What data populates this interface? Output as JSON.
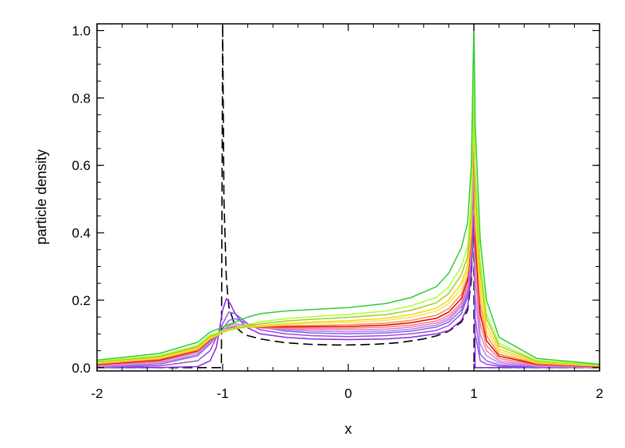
{
  "chart_data": {
    "type": "line",
    "title": "",
    "xlabel": "x",
    "ylabel": "particle density",
    "xlim": [
      -2,
      2
    ],
    "ylim": [
      -0.01,
      1.02
    ],
    "x_ticks": [
      -2,
      -1,
      0,
      1,
      2
    ],
    "x_tick_labels": [
      "-2",
      "-1",
      "0",
      "1",
      "2"
    ],
    "y_ticks": [
      0.0,
      0.2,
      0.4,
      0.6,
      0.8,
      1.0
    ],
    "y_tick_labels": [
      "0.0",
      "0.2",
      "0.4",
      "0.6",
      "0.8",
      "1.0"
    ],
    "grid": false,
    "legend": "none",
    "series": [
      {
        "style": "dashed",
        "color": "#000000",
        "x": [
          -2,
          -1.05,
          -1.01,
          -1.0,
          -0.99,
          -0.97,
          -0.95,
          -0.9,
          -0.85,
          -0.8,
          -0.7,
          -0.6,
          -0.5,
          -0.4,
          -0.3,
          -0.2,
          -0.1,
          0,
          0.1,
          0.2,
          0.3,
          0.4,
          0.5,
          0.6,
          0.7,
          0.8,
          0.9,
          0.95,
          0.98,
          0.995,
          1.0,
          1.001,
          2
        ],
        "y": [
          0,
          0,
          0,
          1.02,
          0.5,
          0.26,
          0.18,
          0.122,
          0.105,
          0.095,
          0.085,
          0.079,
          0.074,
          0.071,
          0.069,
          0.068,
          0.067,
          0.067,
          0.068,
          0.069,
          0.071,
          0.074,
          0.079,
          0.085,
          0.094,
          0.108,
          0.135,
          0.17,
          0.26,
          0.44,
          0.43,
          0,
          0
        ]
      },
      {
        "color": "#8a2be2",
        "x": [
          -2,
          -1.5,
          -1.2,
          -1.1,
          -1.05,
          -1.0,
          -0.97,
          -0.94,
          -0.9,
          -0.85,
          -0.8,
          -0.7,
          -0.5,
          -0.3,
          0,
          0.3,
          0.5,
          0.7,
          0.8,
          0.9,
          0.95,
          0.98,
          0.99,
          0.995,
          1.0,
          1.01,
          1.05,
          2
        ],
        "y": [
          0,
          0,
          0.003,
          0.02,
          0.06,
          0.17,
          0.205,
          0.19,
          0.16,
          0.135,
          0.118,
          0.1,
          0.09,
          0.085,
          0.083,
          0.085,
          0.09,
          0.1,
          0.11,
          0.14,
          0.18,
          0.28,
          0.38,
          0.45,
          0.45,
          0,
          0,
          0
        ]
      },
      {
        "color": "#9b4fd6",
        "x": [
          -2,
          -1.5,
          -1.2,
          -1.1,
          -1.0,
          -0.95,
          -0.9,
          -0.8,
          -0.7,
          -0.5,
          -0.3,
          0,
          0.3,
          0.5,
          0.7,
          0.8,
          0.9,
          0.95,
          0.98,
          0.995,
          1.0,
          1.01,
          1.05,
          1.1,
          1.2,
          1.5,
          2
        ],
        "y": [
          0,
          0.005,
          0.02,
          0.05,
          0.13,
          0.165,
          0.16,
          0.13,
          0.112,
          0.1,
          0.095,
          0.092,
          0.095,
          0.1,
          0.11,
          0.125,
          0.16,
          0.21,
          0.32,
          0.52,
          0.58,
          0.1,
          0.02,
          0.01,
          0.004,
          0.001,
          0
        ]
      },
      {
        "color": "#7b68ee",
        "x": [
          -2,
          -1.5,
          -1.2,
          -1.1,
          -1.0,
          -0.95,
          -0.9,
          -0.8,
          -0.7,
          -0.5,
          -0.3,
          0,
          0.3,
          0.5,
          0.7,
          0.8,
          0.9,
          0.95,
          0.98,
          0.995,
          1.0,
          1.01,
          1.05,
          1.1,
          1.2,
          1.5,
          2
        ],
        "y": [
          0,
          0.01,
          0.035,
          0.07,
          0.115,
          0.14,
          0.145,
          0.13,
          0.12,
          0.108,
          0.103,
          0.1,
          0.103,
          0.108,
          0.12,
          0.135,
          0.17,
          0.22,
          0.34,
          0.55,
          0.62,
          0.15,
          0.04,
          0.02,
          0.008,
          0.002,
          0
        ]
      },
      {
        "color": "#c080e8",
        "x": [
          -2,
          -1.5,
          -1.2,
          -1.1,
          -1.0,
          -0.95,
          -0.9,
          -0.8,
          -0.7,
          -0.5,
          -0.3,
          0,
          0.3,
          0.5,
          0.7,
          0.8,
          0.9,
          0.95,
          0.98,
          0.995,
          1.0,
          1.01,
          1.05,
          1.1,
          1.2,
          1.5,
          2
        ],
        "y": [
          0.003,
          0.012,
          0.04,
          0.075,
          0.11,
          0.125,
          0.13,
          0.125,
          0.118,
          0.112,
          0.108,
          0.106,
          0.108,
          0.114,
          0.126,
          0.142,
          0.18,
          0.23,
          0.35,
          0.58,
          0.65,
          0.22,
          0.07,
          0.035,
          0.014,
          0.004,
          0.001
        ]
      },
      {
        "color": "#e080c8",
        "x": [
          -2,
          -1.5,
          -1.2,
          -1.1,
          -1.0,
          -0.95,
          -0.9,
          -0.8,
          -0.7,
          -0.5,
          -0.3,
          0,
          0.3,
          0.5,
          0.7,
          0.8,
          0.9,
          0.95,
          0.98,
          0.995,
          1.0,
          1.01,
          1.05,
          1.1,
          1.2,
          1.5,
          2
        ],
        "y": [
          0.005,
          0.016,
          0.045,
          0.078,
          0.108,
          0.12,
          0.124,
          0.122,
          0.118,
          0.115,
          0.113,
          0.112,
          0.114,
          0.12,
          0.132,
          0.148,
          0.186,
          0.236,
          0.36,
          0.6,
          0.68,
          0.28,
          0.1,
          0.05,
          0.02,
          0.006,
          0.002
        ]
      },
      {
        "color": "#f08080",
        "x": [
          -2,
          -1.5,
          -1.2,
          -1.1,
          -1.0,
          -0.95,
          -0.9,
          -0.8,
          -0.7,
          -0.5,
          -0.3,
          0,
          0.3,
          0.5,
          0.7,
          0.8,
          0.9,
          0.95,
          0.98,
          0.995,
          1.0,
          1.01,
          1.05,
          1.1,
          1.2,
          1.5,
          2
        ],
        "y": [
          0.007,
          0.019,
          0.048,
          0.08,
          0.107,
          0.117,
          0.121,
          0.121,
          0.119,
          0.118,
          0.117,
          0.117,
          0.12,
          0.126,
          0.138,
          0.155,
          0.193,
          0.245,
          0.37,
          0.62,
          0.7,
          0.33,
          0.13,
          0.065,
          0.027,
          0.008,
          0.002
        ]
      },
      {
        "color": "#e00000",
        "x": [
          -2,
          -1.5,
          -1.2,
          -1.1,
          -1.0,
          -0.95,
          -0.9,
          -0.8,
          -0.7,
          -0.5,
          -0.3,
          0,
          0.3,
          0.5,
          0.7,
          0.8,
          0.9,
          0.95,
          0.98,
          0.995,
          1.0,
          1.01,
          1.05,
          1.1,
          1.2,
          1.5,
          2
        ],
        "y": [
          0.009,
          0.022,
          0.05,
          0.082,
          0.106,
          0.115,
          0.119,
          0.12,
          0.12,
          0.121,
          0.121,
          0.122,
          0.126,
          0.133,
          0.146,
          0.165,
          0.205,
          0.26,
          0.39,
          0.66,
          0.75,
          0.38,
          0.16,
          0.08,
          0.034,
          0.01,
          0.003
        ]
      },
      {
        "color": "#ff8c42",
        "x": [
          -2,
          -1.5,
          -1.2,
          -1.1,
          -1.0,
          -0.95,
          -0.9,
          -0.8,
          -0.7,
          -0.5,
          -0.3,
          0,
          0.3,
          0.5,
          0.7,
          0.8,
          0.9,
          0.95,
          0.98,
          0.995,
          1.0,
          1.01,
          1.05,
          1.1,
          1.2,
          1.5,
          2
        ],
        "y": [
          0.011,
          0.025,
          0.052,
          0.084,
          0.105,
          0.113,
          0.117,
          0.119,
          0.121,
          0.124,
          0.125,
          0.127,
          0.132,
          0.14,
          0.155,
          0.175,
          0.218,
          0.272,
          0.4,
          0.67,
          0.76,
          0.42,
          0.19,
          0.095,
          0.04,
          0.012,
          0.004
        ]
      },
      {
        "color": "#f0e070",
        "x": [
          -2,
          -1.5,
          -1.2,
          -1.1,
          -1.0,
          -0.95,
          -0.9,
          -0.8,
          -0.7,
          -0.5,
          -0.3,
          0,
          0.3,
          0.5,
          0.7,
          0.8,
          0.9,
          0.95,
          0.98,
          0.995,
          1.0,
          1.01,
          1.05,
          1.1,
          1.2,
          1.5,
          2
        ],
        "y": [
          0.013,
          0.028,
          0.055,
          0.086,
          0.104,
          0.112,
          0.116,
          0.12,
          0.123,
          0.128,
          0.131,
          0.134,
          0.14,
          0.15,
          0.167,
          0.19,
          0.235,
          0.29,
          0.42,
          0.69,
          0.78,
          0.46,
          0.22,
          0.11,
          0.048,
          0.014,
          0.005
        ]
      },
      {
        "color": "#ffd700",
        "x": [
          -2,
          -1.5,
          -1.2,
          -1.1,
          -1.0,
          -0.95,
          -0.9,
          -0.8,
          -0.7,
          -0.5,
          -0.3,
          0,
          0.3,
          0.5,
          0.7,
          0.8,
          0.9,
          0.95,
          0.98,
          0.995,
          1.0,
          1.01,
          1.05,
          1.1,
          1.2,
          1.5,
          2
        ],
        "y": [
          0.015,
          0.03,
          0.058,
          0.088,
          0.104,
          0.111,
          0.115,
          0.121,
          0.125,
          0.131,
          0.135,
          0.139,
          0.146,
          0.157,
          0.176,
          0.2,
          0.25,
          0.305,
          0.44,
          0.72,
          0.8,
          0.5,
          0.25,
          0.125,
          0.055,
          0.016,
          0.006
        ]
      },
      {
        "color": "#9acd32",
        "x": [
          -2,
          -1.5,
          -1.2,
          -1.1,
          -1.0,
          -0.95,
          -0.9,
          -0.8,
          -0.7,
          -0.5,
          -0.3,
          0,
          0.3,
          0.5,
          0.7,
          0.8,
          0.9,
          0.95,
          0.98,
          0.995,
          1.0,
          1.01,
          1.05,
          1.1,
          1.2,
          1.5,
          2
        ],
        "y": [
          0.017,
          0.033,
          0.062,
          0.092,
          0.106,
          0.112,
          0.116,
          0.124,
          0.13,
          0.138,
          0.143,
          0.149,
          0.157,
          0.17,
          0.192,
          0.22,
          0.275,
          0.33,
          0.47,
          0.76,
          0.85,
          0.55,
          0.29,
          0.145,
          0.064,
          0.019,
          0.007
        ]
      },
      {
        "color": "#adff2f",
        "x": [
          -2,
          -1.5,
          -1.2,
          -1.1,
          -1.0,
          -0.95,
          -0.9,
          -0.8,
          -0.7,
          -0.5,
          -0.3,
          0,
          0.3,
          0.5,
          0.7,
          0.8,
          0.9,
          0.95,
          0.98,
          0.995,
          1.0,
          1.01,
          1.05,
          1.1,
          1.2,
          1.5,
          2
        ],
        "y": [
          0.019,
          0.036,
          0.066,
          0.096,
          0.108,
          0.114,
          0.118,
          0.128,
          0.136,
          0.145,
          0.151,
          0.158,
          0.168,
          0.183,
          0.208,
          0.24,
          0.3,
          0.36,
          0.5,
          0.8,
          0.9,
          0.6,
          0.32,
          0.16,
          0.072,
          0.021,
          0.008
        ]
      },
      {
        "color": "#32cd32",
        "x": [
          -2,
          -1.5,
          -1.2,
          -1.1,
          -1.0,
          -0.95,
          -0.9,
          -0.8,
          -0.7,
          -0.5,
          -0.3,
          0,
          0.3,
          0.5,
          0.7,
          0.8,
          0.9,
          0.95,
          0.98,
          0.995,
          1.0,
          1.01,
          1.05,
          1.1,
          1.2,
          1.5,
          2
        ],
        "y": [
          0.022,
          0.042,
          0.075,
          0.105,
          0.12,
          0.128,
          0.135,
          0.15,
          0.16,
          0.168,
          0.172,
          0.178,
          0.19,
          0.208,
          0.24,
          0.28,
          0.355,
          0.43,
          0.6,
          0.92,
          1.02,
          0.72,
          0.38,
          0.2,
          0.09,
          0.027,
          0.01
        ]
      }
    ]
  }
}
